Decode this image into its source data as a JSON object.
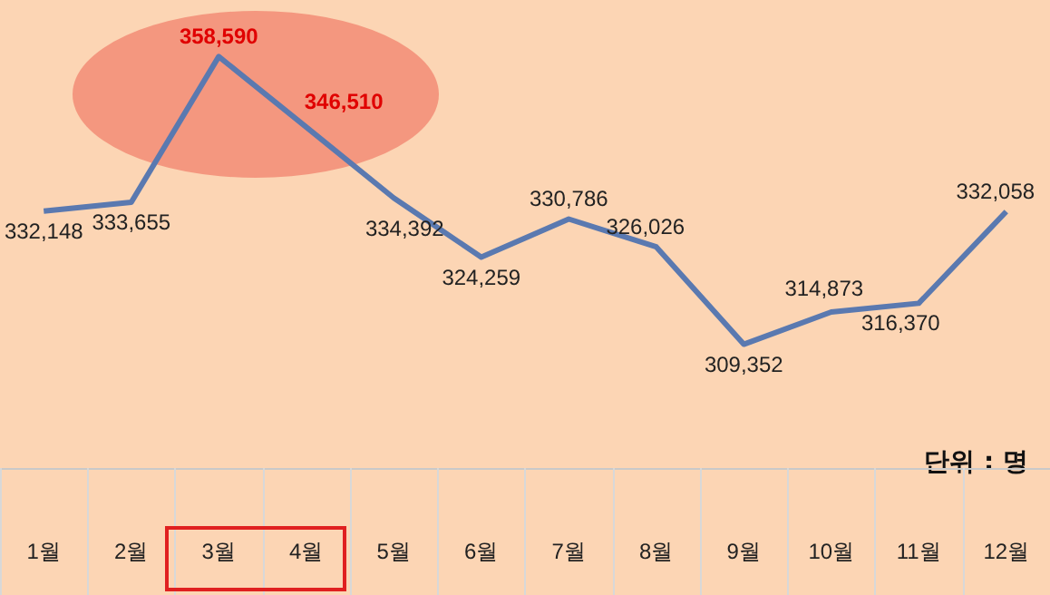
{
  "chart_data": {
    "type": "line",
    "categories": [
      "1월",
      "2월",
      "3월",
      "4월",
      "5월",
      "6월",
      "7월",
      "8월",
      "9월",
      "10월",
      "11월",
      "12월"
    ],
    "series": [
      {
        "color": "#5a79b0",
        "values": [
          332148,
          333655,
          358590,
          346510,
          334392,
          324259,
          330786,
          326026,
          309352,
          314873,
          316370,
          332058
        ],
        "value_labels": [
          "332,148",
          "333,655",
          "358,590",
          "346,510",
          "334,392",
          "324,259",
          "330,786",
          "326,026",
          "309,352",
          "314,873",
          "316,370",
          "332,058"
        ]
      }
    ],
    "marker": "none",
    "annotations": [
      "단위 : 명"
    ]
  }
}
